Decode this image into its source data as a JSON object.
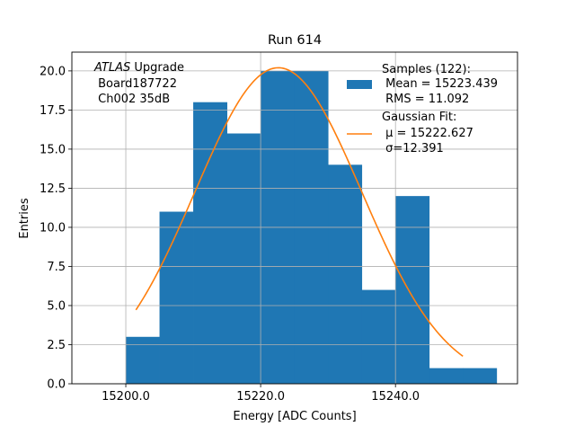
{
  "chart_data": {
    "type": "bar",
    "title": "Run 614",
    "xlabel": "Energy [ADC Counts]",
    "ylabel": "Entries",
    "xlim": [
      15192,
      15258.1
    ],
    "ylim": [
      0,
      21.2
    ],
    "xticks": [
      15200.0,
      15220.0,
      15240.0
    ],
    "xtick_labels": [
      "15200.0",
      "15220.0",
      "15240.0"
    ],
    "yticks": [
      0,
      2.5,
      5,
      7.5,
      10,
      12.5,
      15,
      17.5,
      20
    ],
    "ytick_labels": [
      "0.0",
      "2.5",
      "5.0",
      "7.5",
      "10.0",
      "12.5",
      "15.0",
      "17.5",
      "20.0"
    ],
    "grid": true,
    "bin_edges": [
      15200,
      15205,
      15210,
      15215,
      15220,
      15225,
      15230,
      15235,
      15240,
      15245,
      15250,
      15255
    ],
    "values": [
      3,
      11,
      18,
      16,
      20,
      20,
      14,
      6,
      12,
      1,
      1
    ],
    "bar_color": "#1f77b4",
    "fit": {
      "type": "gaussian",
      "amplitude": 20.2,
      "mu": 15222.627,
      "sigma": 12.391,
      "x_range": [
        15201.5,
        15250
      ],
      "color": "#ff7f0e"
    },
    "annotation": {
      "italic": "ATLAS",
      "line1_rest": " Upgrade",
      "line2": " Board187722",
      "line3": " Ch002 35dB"
    },
    "legend": {
      "placement": "top-right",
      "entries": [
        {
          "lines": [
            "Samples (122):",
            " Mean = 15223.439",
            " RMS = 11.092"
          ]
        },
        {
          "lines": [
            "Gaussian Fit:",
            " μ = 15222.627",
            " σ=12.391"
          ]
        }
      ]
    }
  }
}
